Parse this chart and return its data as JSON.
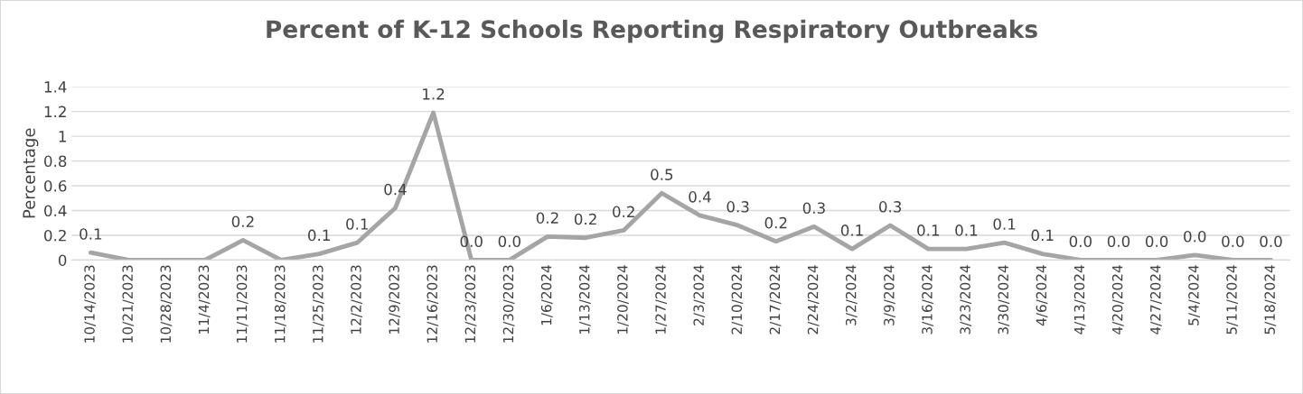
{
  "chart_data": {
    "type": "line",
    "title": "Percent of K-12 Schools Reporting Respiratory Outbreaks",
    "ylabel": "Percentage",
    "categories": [
      "10/14/2023",
      "10/21/2023",
      "10/28/2023",
      "11/4/2023",
      "11/11/2023",
      "11/18/2023",
      "11/25/2023",
      "12/2/2023",
      "12/9/2023",
      "12/16/2023",
      "12/23/2023",
      "12/30/2023",
      "1/6/2024",
      "1/13/2024",
      "1/20/2024",
      "1/27/2024",
      "2/3/2024",
      "2/10/2024",
      "2/17/2024",
      "2/24/2024",
      "3/2/2024",
      "3/9/2024",
      "3/16/2024",
      "3/23/2024",
      "3/30/2024",
      "4/6/2024",
      "4/13/2024",
      "4/20/2024",
      "4/27/2024",
      "5/4/2024",
      "5/11/2024",
      "5/18/2024"
    ],
    "series": [
      {
        "color": "#a5a5a5",
        "values": [
          0.06,
          0,
          0,
          0,
          0.16,
          0,
          0.05,
          0.14,
          0.42,
          1.19,
          0,
          0,
          0.19,
          0.18,
          0.24,
          0.54,
          0.36,
          0.28,
          0.15,
          0.27,
          0.09,
          0.28,
          0.09,
          0.09,
          0.14,
          0.05,
          0,
          0,
          0,
          0.04,
          0,
          0
        ],
        "value_labels": [
          "0.1",
          null,
          null,
          null,
          "0.2",
          null,
          "0.1",
          "0.1",
          "0.4",
          "1.2",
          "0.0",
          "0.0",
          "0.2",
          "0.2",
          "0.2",
          "0.5",
          "0.4",
          "0.3",
          "0.2",
          "0.3",
          "0.1",
          "0.3",
          "0.1",
          "0.1",
          "0.1",
          "0.1",
          "0.0",
          "0.0",
          "0.0",
          "0.0",
          "0.0",
          "0.0"
        ]
      }
    ],
    "ylim": [
      0,
      1.4
    ],
    "yticks": [
      0,
      0.2,
      0.4,
      0.6,
      0.8,
      1,
      1.2,
      1.4
    ],
    "grid": "y",
    "legend": false,
    "marker": "none",
    "line_style": "solid"
  }
}
